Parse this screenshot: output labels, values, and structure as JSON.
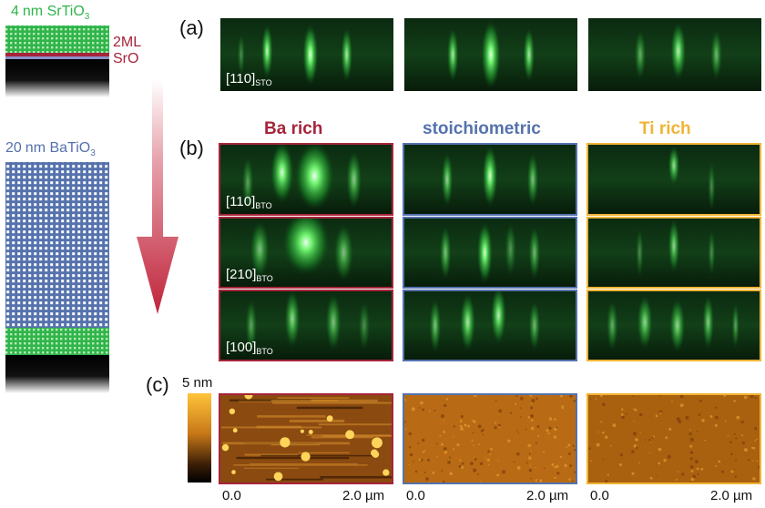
{
  "colors": {
    "sto_green": "#2fb54a",
    "sro_red": "#a6243a",
    "bto_blue": "#5572ad",
    "ti_orange": "#f0b435",
    "arrow_red": "#c0243a"
  },
  "schematic": {
    "top_layer": {
      "num": "4",
      "unit": "nm",
      "material": "SrTiO",
      "sub": "3"
    },
    "interface": {
      "line1": "2ML",
      "line2": "SrO"
    },
    "film": {
      "num": "20",
      "unit": "nm",
      "material": "BaTiO",
      "sub": "3"
    }
  },
  "panels": {
    "a": "(a)",
    "b": "(b)",
    "c": "(c)"
  },
  "groups": {
    "ba_rich": "Ba rich",
    "stoichiometric": "stoichiometric",
    "ti_rich": "Ti rich"
  },
  "rheed_labels": {
    "sto_110": {
      "dir": "[110]",
      "sub": "STO"
    },
    "bto_110": {
      "dir": "[110]",
      "sub": "BTO"
    },
    "bto_210": {
      "dir": "[210]",
      "sub": "BTO"
    },
    "bto_100": {
      "dir": "[100]",
      "sub": "BTO"
    }
  },
  "afm": {
    "scale_max": "5 nm",
    "axis_start": "0.0",
    "axis_end": "2.0 µm"
  }
}
